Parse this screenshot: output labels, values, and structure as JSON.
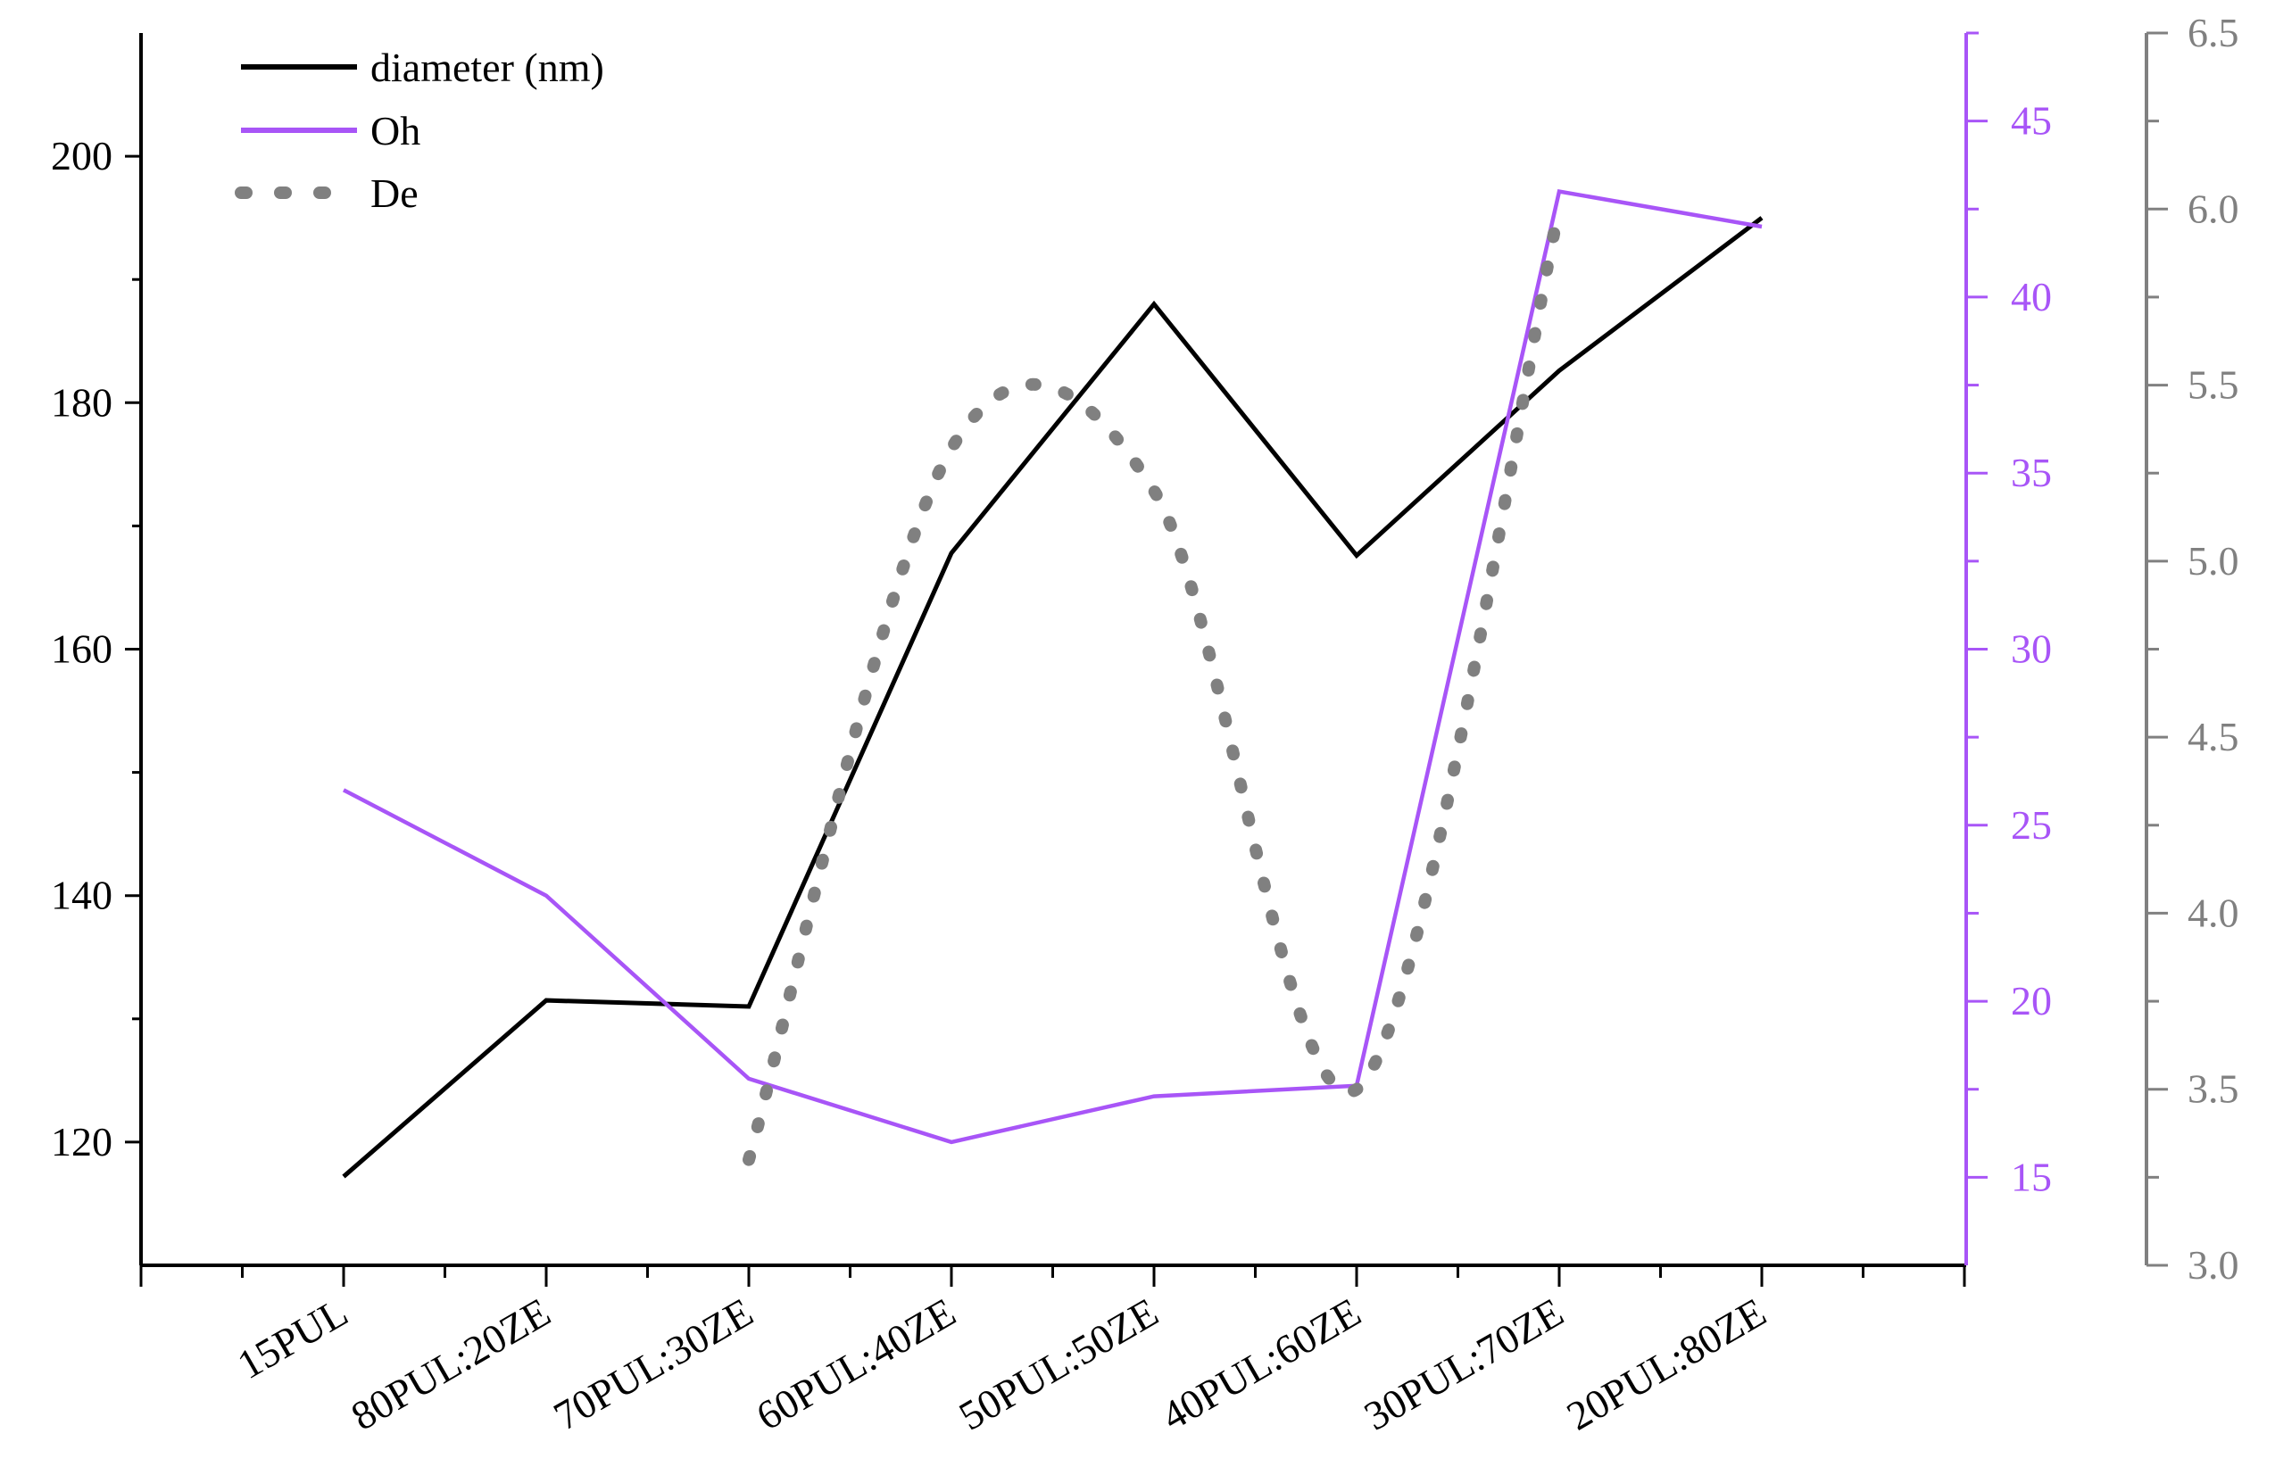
{
  "chart_data": {
    "type": "line",
    "categories": [
      "15PUL",
      "80PUL:20ZE",
      "70PUL:30ZE",
      "60PUL:40ZE",
      "50PUL:50ZE",
      "40PUL:60ZE",
      "30PUL:70ZE",
      "20PUL:80ZE"
    ],
    "series": [
      {
        "name": "diameter (nm)",
        "axis": "left",
        "color": "#000000",
        "style": "solid",
        "values": [
          117.2,
          131.5,
          131.0,
          167.8,
          188.0,
          167.6,
          182.6,
          195.0
        ]
      },
      {
        "name": "Oh",
        "axis": "right1",
        "color": "#a855f7",
        "style": "solid",
        "values": [
          26.0,
          23.0,
          17.8,
          16.0,
          17.3,
          17.6,
          43.0,
          42.0
        ]
      },
      {
        "name": "De",
        "axis": "right2",
        "color": "#808080",
        "style": "dotted",
        "values": [
          null,
          null,
          3.3,
          5.32,
          5.2,
          3.5,
          6.0,
          null
        ]
      }
    ],
    "axes": {
      "left": {
        "ylim": [
          110,
          210
        ],
        "ticks": [
          120,
          140,
          160,
          180,
          200
        ],
        "tick_labels": [
          "120",
          "140",
          "160",
          "180",
          "200"
        ],
        "color": "#000000"
      },
      "right1": {
        "ylim": [
          12.5,
          47.5
        ],
        "ticks": [
          15,
          20,
          25,
          30,
          35,
          40,
          45
        ],
        "tick_labels": [
          "15",
          "20",
          "25",
          "30",
          "35",
          "40",
          "45"
        ],
        "color": "#a855f7"
      },
      "right2": {
        "ylim": [
          3.0,
          6.5
        ],
        "ticks": [
          3.0,
          3.5,
          4.0,
          4.5,
          5.0,
          5.5,
          6.0,
          6.5
        ],
        "tick_labels": [
          "3.0",
          "3.5",
          "4.0",
          "4.5",
          "5.0",
          "5.5",
          "6.0",
          "6.5"
        ],
        "color": "#808080"
      }
    },
    "xlabel": "",
    "ylabel": "",
    "title": "",
    "grid": false,
    "legend_position": "top-left"
  }
}
